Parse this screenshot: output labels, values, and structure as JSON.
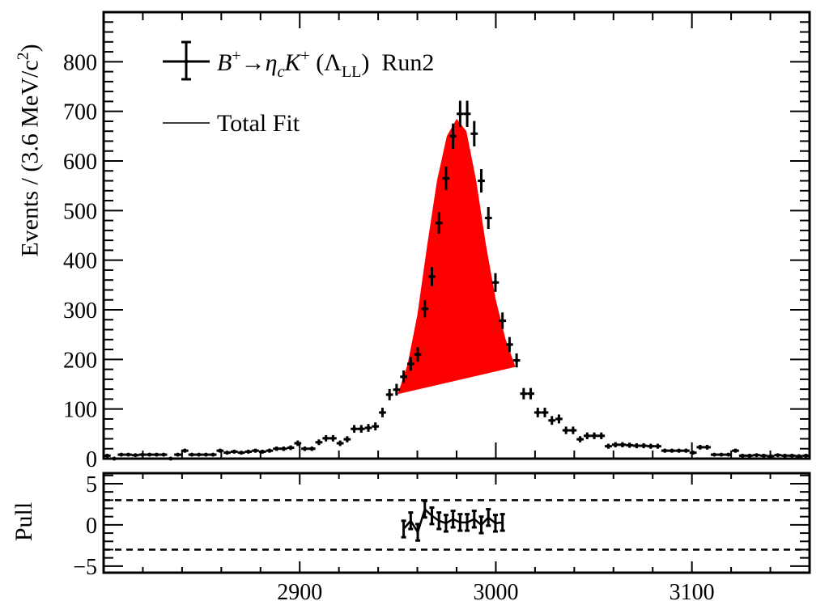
{
  "chart_data": {
    "type": "scatter",
    "title": "",
    "xlabel": "",
    "ylabel": "Events / (3.6 MeV/c",
    "ylabel_sup": "2",
    "ylabel_close": ")",
    "xlim": [
      2800,
      3160
    ],
    "ylim": [
      0,
      900
    ],
    "bin_width": 3.6,
    "x_ticks": [
      2900,
      3000,
      3100
    ],
    "y_ticks": [
      0,
      100,
      200,
      300,
      400,
      500,
      600,
      700,
      800
    ],
    "values": [
      6,
      0,
      8,
      8,
      7,
      8,
      8,
      8,
      8,
      0,
      8,
      16,
      8,
      8,
      8,
      8,
      16,
      12,
      14,
      12,
      14,
      16,
      14,
      16,
      20,
      20,
      22,
      31,
      20,
      20,
      33,
      41,
      41,
      31,
      39,
      60,
      60,
      62,
      65,
      93,
      129,
      139,
      165,
      191,
      210,
      302,
      367,
      475,
      565,
      650,
      695,
      695,
      655,
      560,
      485,
      355,
      278,
      230,
      198,
      131,
      131,
      93,
      93,
      77,
      80,
      57,
      57,
      39,
      46,
      46,
      46,
      25,
      28,
      28,
      27,
      26,
      26,
      25,
      25,
      16,
      16,
      16,
      16,
      12,
      23,
      23,
      8,
      8,
      8,
      16,
      6,
      6,
      7,
      6,
      5,
      7,
      6,
      6,
      5,
      6
    ],
    "signal_fit": {
      "x": [
        2950,
        2955,
        2960,
        2965,
        2970,
        2975,
        2980,
        2985,
        2990,
        2995,
        3000,
        3005,
        3010
      ],
      "y": [
        130,
        190,
        290,
        430,
        560,
        650,
        685,
        660,
        560,
        430,
        320,
        240,
        185
      ],
      "baseline": [
        [
          2950,
          130
        ],
        [
          3010,
          185
        ]
      ],
      "color": "#ff0000"
    },
    "pull": {
      "ylabel": "Pull",
      "ylim": [
        -5.8,
        6.27
      ],
      "y_ticks": [
        -5,
        0,
        5
      ],
      "y_tick_labels": [
        "−5",
        "0",
        "5"
      ],
      "bands": [
        -3,
        3
      ],
      "x": [
        2953.0,
        2956.6,
        2960.2,
        2963.8,
        2967.4,
        2971.0,
        2974.6,
        2978.2,
        2981.8,
        2985.4,
        2989.0,
        2992.6,
        2996.2,
        2999.8,
        3003.4
      ],
      "values": [
        -0.5,
        0.5,
        -0.9,
        1.9,
        1.1,
        0.5,
        0.2,
        0.7,
        0.3,
        0.3,
        0.7,
        0.0,
        0.9,
        0.2,
        0.3
      ]
    },
    "legend": {
      "placement": "top-left",
      "decay": {
        "b": "B",
        "b_sup": "+",
        "arrow": "→",
        "eta": "η",
        "eta_sub": "c",
        "k": "K",
        "k_sup": "+",
        "lambda": "(Λ",
        "lambda_sub": "LL",
        "close": ")"
      },
      "run": "Run2",
      "fit_label": "Total Fit"
    }
  }
}
